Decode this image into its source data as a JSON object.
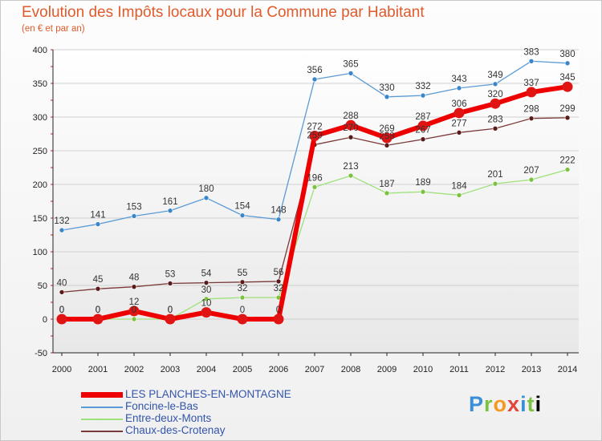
{
  "title": "Evolution des Impôts locaux pour la Commune par Habitant",
  "subtitle": "(en € et par an)",
  "logo_text": "Proxiti",
  "chart_data": {
    "type": "line",
    "title": "Evolution des Impôts locaux pour la Commune par Habitant",
    "ylabel": "(en € et par an)",
    "xlabel": "",
    "ylim": [
      -50,
      400
    ],
    "yticks": [
      -50,
      0,
      50,
      100,
      150,
      200,
      250,
      300,
      350,
      400
    ],
    "x": [
      "2000",
      "2001",
      "2002",
      "2003",
      "2004",
      "2005",
      "2006",
      "2007",
      "2008",
      "2009",
      "2010",
      "2011",
      "2012",
      "2013",
      "2014"
    ],
    "legend_position": "bottom-left",
    "series": [
      {
        "name": "Foncine-le-Bas",
        "color": "#5b9bd5",
        "marker": "#3a86c8",
        "width": 1.3,
        "values": [
          132,
          141,
          153,
          161,
          180,
          154,
          148,
          356,
          365,
          330,
          332,
          343,
          349,
          383,
          380
        ],
        "labels": [
          "132",
          "141",
          "153",
          "161",
          "180",
          "154",
          "148",
          "356",
          "365",
          "330",
          "332",
          "343",
          "349",
          "383",
          "380"
        ]
      },
      {
        "name": "Entre-deux-Monts",
        "color": "#9ee07a",
        "marker": "#7cc242",
        "width": 1.3,
        "values": [
          0,
          0,
          0,
          0,
          30,
          32,
          32,
          196,
          213,
          187,
          189,
          184,
          201,
          207,
          222
        ],
        "labels": [
          "0",
          "0",
          "0",
          "0",
          "30",
          "32",
          "32",
          "196",
          "213",
          "187",
          "189",
          "184",
          "201",
          "207",
          "222"
        ]
      },
      {
        "name": "Chaux-des-Crotenay",
        "color": "#7a3a3a",
        "marker": "#5a1a1a",
        "width": 1.3,
        "values": [
          40,
          45,
          48,
          53,
          54,
          55,
          56,
          259,
          270,
          258,
          267,
          277,
          283,
          298,
          299
        ],
        "labels": [
          "40",
          "45",
          "48",
          "53",
          "54",
          "55",
          "56",
          "259",
          "270",
          "258",
          "267",
          "277",
          "283",
          "298",
          "299"
        ]
      },
      {
        "name": "LES PLANCHES-EN-MONTAGNE",
        "color": "#ee0000",
        "marker": "#e11414",
        "width": 6,
        "values": [
          0,
          0,
          12,
          0,
          10,
          0,
          0,
          272,
          288,
          269,
          287,
          306,
          320,
          337,
          345
        ],
        "labels": [
          "0",
          "0",
          "12",
          "0",
          "10",
          "0",
          "0",
          "272",
          "288",
          "269",
          "287",
          "306",
          "320",
          "337",
          "345"
        ]
      }
    ]
  }
}
